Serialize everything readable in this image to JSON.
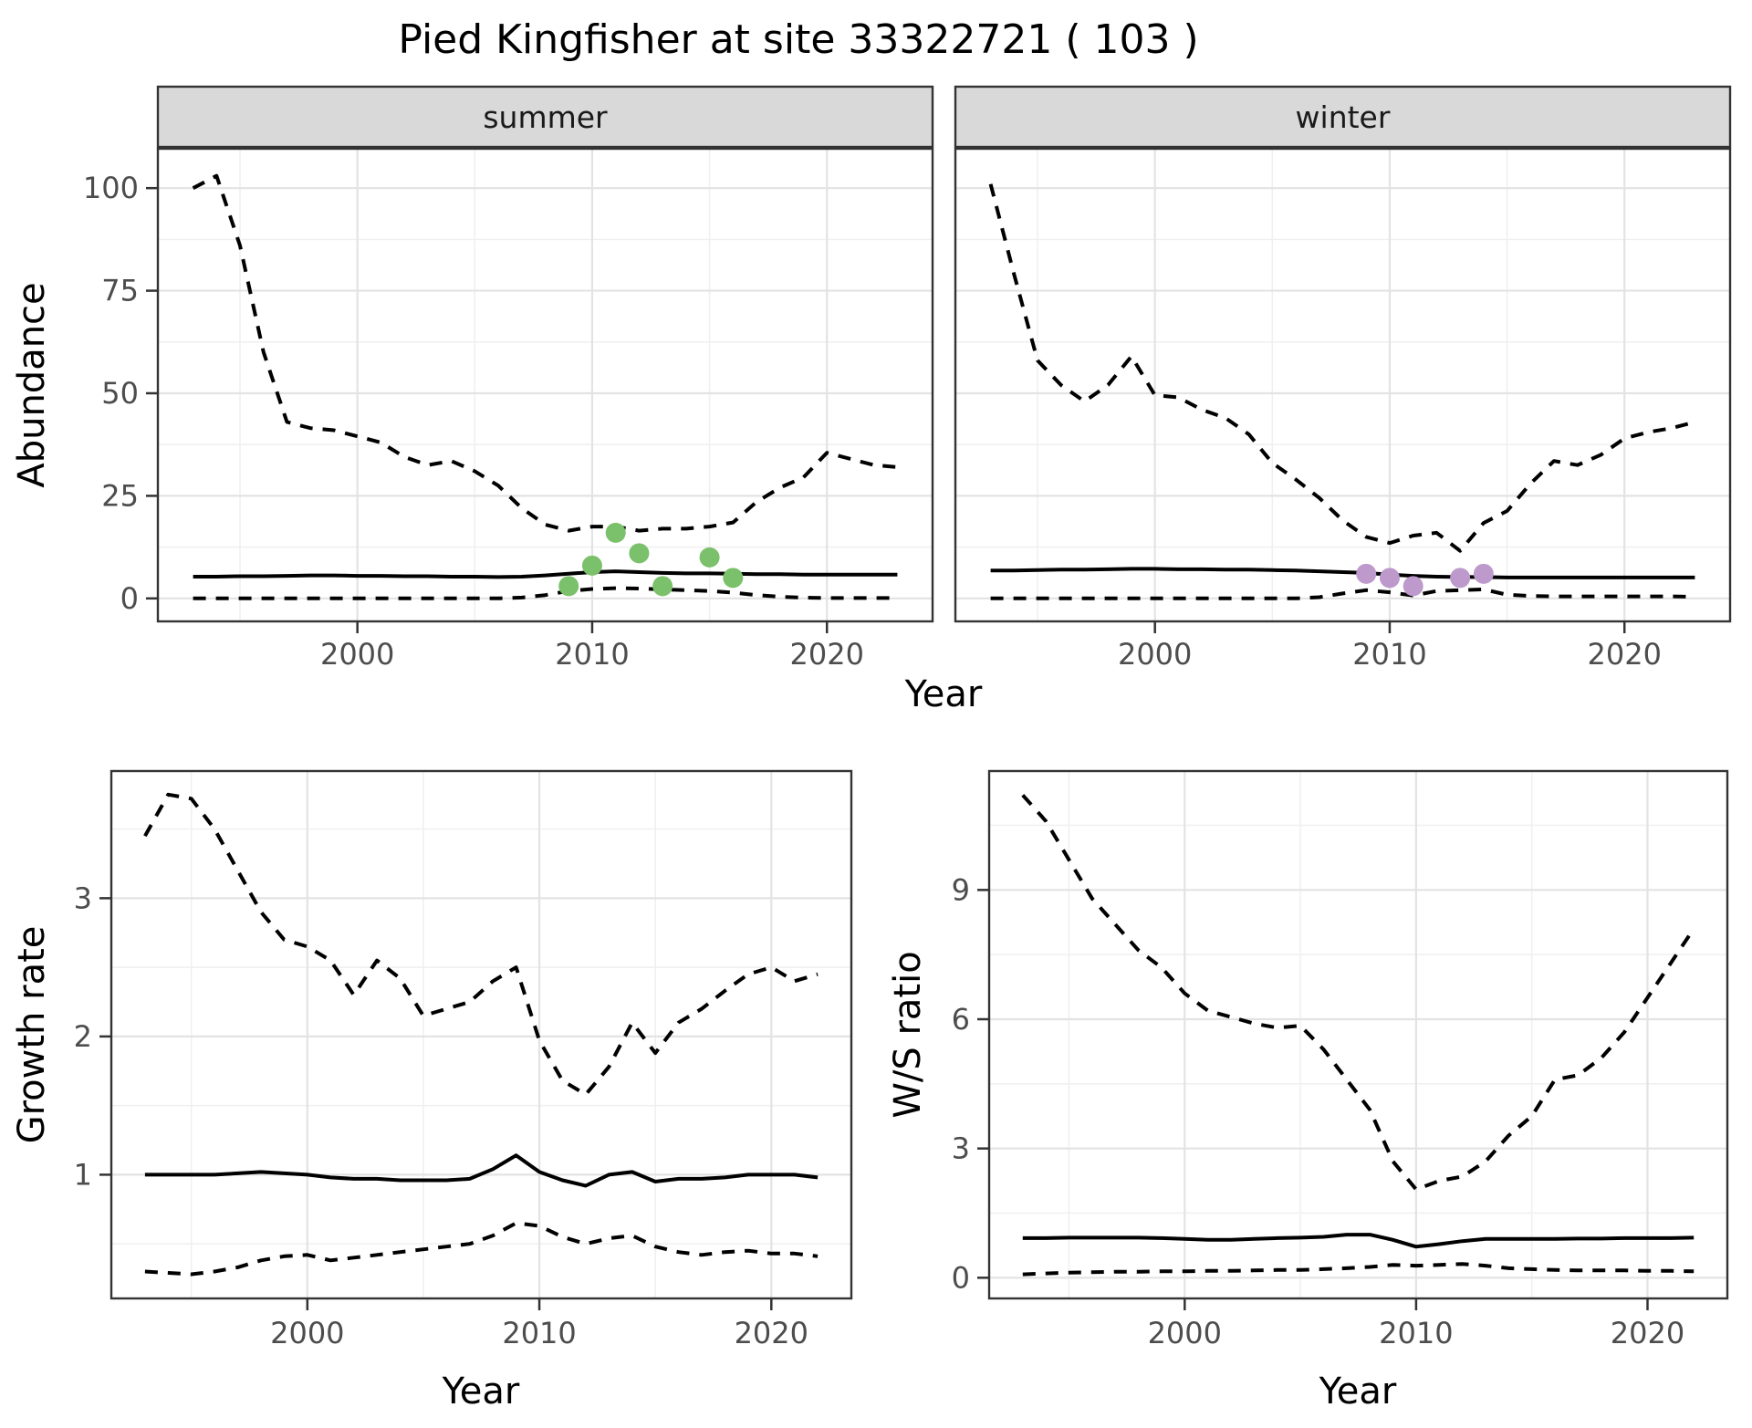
{
  "title": "Pied Kingfisher at site 33322721 ( 103 )",
  "colors": {
    "background": "#ffffff",
    "panel_border": "#333333",
    "strip_fill": "#d9d9d9",
    "grid_major": "#e3e3e3",
    "grid_minor": "#f0f0f0",
    "line": "#000000",
    "tick_text": "#4d4d4d",
    "summer_points": "#7bc06a",
    "winter_points": "#bd99cc"
  },
  "chart_data": [
    {
      "type": "line",
      "facet": "summer",
      "xlabel": "Year",
      "ylabel": "Abundance",
      "x": [
        1993,
        1994,
        1995,
        1996,
        1997,
        1998,
        1999,
        2000,
        2001,
        2002,
        2003,
        2004,
        2005,
        2006,
        2007,
        2008,
        2009,
        2010,
        2011,
        2012,
        2013,
        2014,
        2015,
        2016,
        2017,
        2018,
        2019,
        2020,
        2021,
        2022,
        2023
      ],
      "series": [
        {
          "name": "upper_95ci",
          "style": "dashed",
          "values": [
            100,
            103,
            86,
            60,
            43,
            41.5,
            41,
            39.5,
            38,
            34.5,
            32.5,
            33.5,
            31,
            27.5,
            22,
            18,
            16.5,
            17.5,
            17.5,
            16.5,
            17,
            17,
            17.5,
            18.5,
            23.5,
            27,
            29.5,
            35.5,
            34,
            32.5,
            32
          ]
        },
        {
          "name": "median",
          "style": "solid",
          "values": [
            5.3,
            5.3,
            5.4,
            5.4,
            5.5,
            5.6,
            5.6,
            5.5,
            5.5,
            5.4,
            5.4,
            5.3,
            5.3,
            5.2,
            5.3,
            5.6,
            6.0,
            6.4,
            6.6,
            6.4,
            6.2,
            6.1,
            6.1,
            6.0,
            5.9,
            5.9,
            5.8,
            5.8,
            5.8,
            5.8,
            5.8
          ]
        },
        {
          "name": "lower_95ci",
          "style": "dashed",
          "values": [
            0,
            0,
            0,
            0,
            0,
            0,
            0,
            0,
            0,
            0,
            0,
            0,
            0,
            0,
            0.2,
            0.8,
            1.8,
            2.3,
            2.5,
            2.4,
            2.2,
            2.0,
            1.8,
            1.4,
            0.8,
            0.4,
            0.2,
            0.1,
            0.1,
            0.1,
            0.1
          ]
        }
      ],
      "observed_points": {
        "x": [
          2009,
          2010,
          2011,
          2012,
          2013,
          2015,
          2016
        ],
        "y": [
          3,
          8,
          16,
          11,
          3,
          10,
          5
        ],
        "color": "#7bc06a"
      },
      "xticks": [
        2000,
        2010,
        2020
      ],
      "yticks": [
        0,
        25,
        50,
        75,
        100
      ],
      "xlim": [
        1991.5,
        2024.5
      ],
      "ylim": [
        -5.6,
        109.6
      ],
      "grid": "on"
    },
    {
      "type": "line",
      "facet": "winter",
      "xlabel": "Year",
      "ylabel": "Abundance",
      "x": [
        1993,
        1994,
        1995,
        1996,
        1997,
        1998,
        1999,
        2000,
        2001,
        2002,
        2003,
        2004,
        2005,
        2006,
        2007,
        2008,
        2009,
        2010,
        2011,
        2012,
        2013,
        2014,
        2015,
        2016,
        2017,
        2018,
        2019,
        2020,
        2021,
        2022,
        2023
      ],
      "series": [
        {
          "name": "upper_95ci",
          "style": "dashed",
          "values": [
            101,
            79,
            58,
            52,
            48,
            52,
            59,
            49.5,
            49,
            46,
            44,
            40,
            33,
            29,
            24.5,
            19,
            15,
            13.5,
            15.3,
            16,
            11.6,
            18.4,
            21.3,
            28,
            33.5,
            32.5,
            35,
            39,
            40.5,
            41.5,
            43
          ]
        },
        {
          "name": "median",
          "style": "solid",
          "values": [
            6.8,
            6.8,
            6.9,
            7.0,
            7.0,
            7.1,
            7.2,
            7.2,
            7.1,
            7.1,
            7.0,
            7.0,
            6.9,
            6.8,
            6.6,
            6.4,
            6.2,
            5.8,
            5.5,
            5.3,
            5.2,
            5.2,
            5.1,
            5.1,
            5.1,
            5.1,
            5.1,
            5.1,
            5.1,
            5.1,
            5.1
          ]
        },
        {
          "name": "lower_95ci",
          "style": "dashed",
          "values": [
            0,
            0,
            0,
            0,
            0,
            0,
            0,
            0,
            0,
            0,
            0,
            0,
            0,
            0,
            0.3,
            1.2,
            2.0,
            1.5,
            0.7,
            1.8,
            2.0,
            2.2,
            0.9,
            0.6,
            0.5,
            0.5,
            0.5,
            0.5,
            0.5,
            0.5,
            0.4
          ]
        }
      ],
      "observed_points": {
        "x": [
          2009,
          2010,
          2011,
          2013,
          2014
        ],
        "y": [
          6,
          5,
          3,
          5,
          6
        ],
        "color": "#bd99cc"
      },
      "xticks": [
        2000,
        2010,
        2020
      ],
      "yticks": [
        0,
        25,
        50,
        75,
        100
      ],
      "xlim": [
        1991.5,
        2024.5
      ],
      "ylim": [
        -5.6,
        109.6
      ],
      "grid": "on"
    },
    {
      "type": "line",
      "facet": null,
      "xlabel": "Year",
      "ylabel": "Growth rate",
      "x": [
        1993,
        1994,
        1995,
        1996,
        1997,
        1998,
        1999,
        2000,
        2001,
        2002,
        2003,
        2004,
        2005,
        2006,
        2007,
        2008,
        2009,
        2010,
        2011,
        2012,
        2013,
        2014,
        2015,
        2016,
        2017,
        2018,
        2019,
        2020,
        2021,
        2022
      ],
      "series": [
        {
          "name": "upper_95ci",
          "style": "dashed",
          "values": [
            3.45,
            3.75,
            3.72,
            3.5,
            3.2,
            2.9,
            2.7,
            2.65,
            2.55,
            2.3,
            2.55,
            2.42,
            2.15,
            2.2,
            2.25,
            2.4,
            2.5,
            1.97,
            1.68,
            1.58,
            1.78,
            2.1,
            1.88,
            2.1,
            2.2,
            2.33,
            2.45,
            2.5,
            2.4,
            2.45
          ]
        },
        {
          "name": "median",
          "style": "solid",
          "values": [
            1.0,
            1.0,
            1.0,
            1.0,
            1.01,
            1.02,
            1.01,
            1.0,
            0.98,
            0.97,
            0.97,
            0.96,
            0.96,
            0.96,
            0.97,
            1.04,
            1.14,
            1.02,
            0.96,
            0.92,
            1.0,
            1.02,
            0.95,
            0.97,
            0.97,
            0.98,
            1.0,
            1.0,
            1.0,
            0.98
          ]
        },
        {
          "name": "lower_95ci",
          "style": "dashed",
          "values": [
            0.3,
            0.29,
            0.28,
            0.3,
            0.33,
            0.38,
            0.41,
            0.42,
            0.38,
            0.4,
            0.42,
            0.44,
            0.46,
            0.48,
            0.5,
            0.56,
            0.65,
            0.63,
            0.55,
            0.5,
            0.54,
            0.56,
            0.48,
            0.44,
            0.42,
            0.44,
            0.45,
            0.43,
            0.43,
            0.41
          ]
        }
      ],
      "observed_points": null,
      "xticks": [
        2000,
        2010,
        2020
      ],
      "yticks": [
        1,
        2,
        3
      ],
      "xlim": [
        1991.55,
        2023.45
      ],
      "ylim": [
        0.105,
        3.92
      ],
      "grid": "on"
    },
    {
      "type": "line",
      "facet": null,
      "xlabel": "Year",
      "ylabel": "W/S ratio",
      "x": [
        1993,
        1994,
        1995,
        1996,
        1997,
        1998,
        1999,
        2000,
        2001,
        2002,
        2003,
        2004,
        2005,
        2006,
        2007,
        2008,
        2009,
        2010,
        2011,
        2012,
        2013,
        2014,
        2015,
        2016,
        2017,
        2018,
        2019,
        2020,
        2021,
        2022
      ],
      "series": [
        {
          "name": "upper_95ci",
          "style": "dashed",
          "values": [
            11.2,
            10.6,
            9.7,
            8.8,
            8.2,
            7.6,
            7.2,
            6.6,
            6.2,
            6.05,
            5.9,
            5.8,
            5.85,
            5.3,
            4.6,
            3.9,
            2.7,
            2.05,
            2.25,
            2.35,
            2.7,
            3.3,
            3.75,
            4.6,
            4.7,
            5.1,
            5.7,
            6.5,
            7.3,
            8.1
          ]
        },
        {
          "name": "median",
          "style": "solid",
          "values": [
            0.92,
            0.92,
            0.93,
            0.93,
            0.93,
            0.93,
            0.92,
            0.9,
            0.88,
            0.88,
            0.9,
            0.92,
            0.93,
            0.95,
            1.0,
            1.0,
            0.88,
            0.72,
            0.78,
            0.85,
            0.9,
            0.9,
            0.9,
            0.9,
            0.91,
            0.91,
            0.92,
            0.92,
            0.92,
            0.93
          ]
        },
        {
          "name": "lower_95ci",
          "style": "dashed",
          "values": [
            0.08,
            0.1,
            0.12,
            0.13,
            0.14,
            0.14,
            0.15,
            0.15,
            0.16,
            0.16,
            0.17,
            0.18,
            0.18,
            0.2,
            0.22,
            0.25,
            0.3,
            0.28,
            0.3,
            0.32,
            0.28,
            0.22,
            0.2,
            0.18,
            0.17,
            0.17,
            0.17,
            0.16,
            0.16,
            0.15
          ]
        }
      ],
      "observed_points": null,
      "xticks": [
        2000,
        2010,
        2020
      ],
      "yticks": [
        0,
        3,
        6,
        9
      ],
      "xlim": [
        1991.55,
        2023.45
      ],
      "ylim": [
        -0.48,
        11.76
      ],
      "grid": "on"
    }
  ]
}
